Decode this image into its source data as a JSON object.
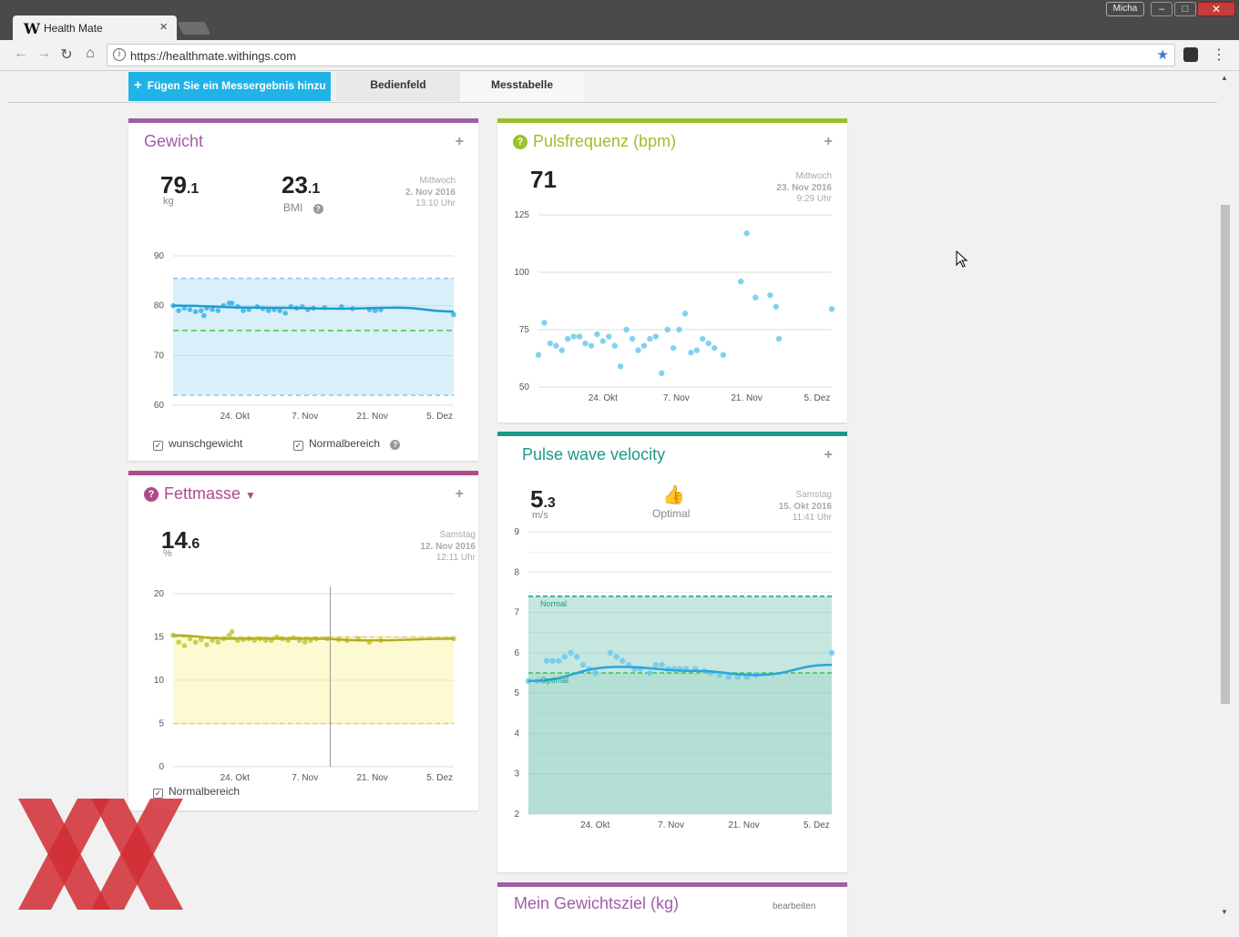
{
  "browser": {
    "tab_title": "Health Mate",
    "tab_logo": "W",
    "profile_name": "Micha",
    "url": "https://healthmate.withings.com"
  },
  "subnav": {
    "add_button": "Fügen Sie ein Messergebnis hinzu",
    "tabs": [
      "Bedienfeld",
      "Messtabelle"
    ]
  },
  "cards": {
    "weight": {
      "title": "Gewicht",
      "value_int": "79",
      "value_dec": ".1",
      "unit": "kg",
      "bmi_int": "23",
      "bmi_dec": ".1",
      "bmi_label": "BMI",
      "date_day": "Mittwoch",
      "date": "2. Nov 2016",
      "time": "13:10 Uhr",
      "checkbox_1": "wunschgewicht",
      "checkbox_2": "Normalbereich"
    },
    "fat": {
      "title": "Fettmasse",
      "value_int": "14",
      "value_dec": ".6",
      "unit": "%",
      "date_day": "Samstag",
      "date": "12. Nov 2016",
      "time": "12:11 Uhr",
      "checkbox_1": "Normalbereich"
    },
    "pulse": {
      "title": "Pulsfrequenz (bpm)",
      "value": "71",
      "date_day": "Mittwoch",
      "date": "23. Nov 2016",
      "time": "9:29 Uhr"
    },
    "pwv": {
      "title": "Pulse wave velocity",
      "value_int": "5",
      "value_dec": ".3",
      "unit": "m/s",
      "status": "Optimal",
      "date_day": "Samstag",
      "date": "15. Okt 2016",
      "time": "11:41 Uhr",
      "band_normal_label": "Normal",
      "band_optimal_label": "Optimal"
    },
    "goal": {
      "title": "Mein Gewichtsziel (kg)",
      "edit_label": "bearbeiten"
    }
  },
  "colors": {
    "weight": "#a05ea8",
    "fat": "#b04a88",
    "pulse": "#9cbf2b",
    "pwv": "#1a9b87",
    "accent": "#1fb3e8"
  },
  "chart_data": [
    {
      "id": "weight",
      "type": "scatter",
      "x_ticks": [
        "24. Okt",
        "7. Nov",
        "21. Nov",
        "5. Dez"
      ],
      "y_ticks": [
        60,
        70,
        80,
        90
      ],
      "ylim": [
        60,
        90
      ],
      "normal_range": [
        62,
        85.5
      ],
      "target": 75,
      "trend": [
        [
          0,
          80
        ],
        [
          30,
          79.6
        ],
        [
          60,
          79.4
        ],
        [
          80,
          79.6
        ],
        [
          100,
          78.8
        ]
      ],
      "points": [
        [
          0,
          80
        ],
        [
          2,
          79
        ],
        [
          4,
          79.5
        ],
        [
          6,
          79.2
        ],
        [
          8,
          78.8
        ],
        [
          10,
          79
        ],
        [
          11,
          78
        ],
        [
          12,
          79.5
        ],
        [
          14,
          79.2
        ],
        [
          16,
          79
        ],
        [
          18,
          80
        ],
        [
          20,
          80.5
        ],
        [
          21,
          80.5
        ],
        [
          23,
          79.8
        ],
        [
          25,
          79
        ],
        [
          27,
          79.2
        ],
        [
          30,
          79.8
        ],
        [
          32,
          79.4
        ],
        [
          34,
          79
        ],
        [
          36,
          79.2
        ],
        [
          38,
          79
        ],
        [
          40,
          78.5
        ],
        [
          42,
          79.8
        ],
        [
          44,
          79.5
        ],
        [
          46,
          79.8
        ],
        [
          48,
          79.2
        ],
        [
          50,
          79.5
        ],
        [
          54,
          79.6
        ],
        [
          60,
          79.8
        ],
        [
          64,
          79.4
        ],
        [
          70,
          79.2
        ],
        [
          72,
          79
        ],
        [
          74,
          79.2
        ],
        [
          100,
          78.2
        ]
      ]
    },
    {
      "id": "fat",
      "type": "scatter",
      "x_ticks": [
        "24. Okt",
        "7. Nov",
        "21. Nov",
        "5. Dez"
      ],
      "y_ticks": [
        0,
        5,
        10,
        15,
        20
      ],
      "ylim": [
        0,
        20
      ],
      "normal_range": [
        5,
        15
      ],
      "trend": [
        [
          0,
          15.2
        ],
        [
          20,
          14.8
        ],
        [
          50,
          14.8
        ],
        [
          70,
          14.6
        ],
        [
          100,
          14.8
        ]
      ],
      "points": [
        [
          0,
          15.2
        ],
        [
          2,
          14.4
        ],
        [
          4,
          14
        ],
        [
          6,
          14.8
        ],
        [
          8,
          14.4
        ],
        [
          10,
          14.7
        ],
        [
          12,
          14.1
        ],
        [
          14,
          14.6
        ],
        [
          16,
          14.4
        ],
        [
          18,
          14.8
        ],
        [
          20,
          15.2
        ],
        [
          21,
          15.6
        ],
        [
          23,
          14.6
        ],
        [
          25,
          14.7
        ],
        [
          27,
          14.8
        ],
        [
          29,
          14.6
        ],
        [
          31,
          14.8
        ],
        [
          33,
          14.6
        ],
        [
          35,
          14.6
        ],
        [
          37,
          15
        ],
        [
          39,
          14.8
        ],
        [
          41,
          14.6
        ],
        [
          43,
          14.9
        ],
        [
          45,
          14.6
        ],
        [
          47,
          14.4
        ],
        [
          49,
          14.6
        ],
        [
          51,
          14.8
        ],
        [
          55,
          14.8
        ],
        [
          59,
          14.7
        ],
        [
          62,
          14.6
        ],
        [
          66,
          14.8
        ],
        [
          70,
          14.4
        ],
        [
          74,
          14.6
        ],
        [
          100,
          14.8
        ]
      ]
    },
    {
      "id": "pulse",
      "type": "scatter",
      "x_ticks": [
        "24. Okt",
        "7. Nov",
        "21. Nov",
        "5. Dez"
      ],
      "y_ticks": [
        50,
        75,
        100,
        125
      ],
      "ylim": [
        50,
        125
      ],
      "points": [
        [
          0,
          64
        ],
        [
          2,
          78
        ],
        [
          4,
          69
        ],
        [
          6,
          68
        ],
        [
          8,
          66
        ],
        [
          10,
          71
        ],
        [
          12,
          72
        ],
        [
          14,
          72
        ],
        [
          16,
          69
        ],
        [
          18,
          68
        ],
        [
          20,
          73
        ],
        [
          22,
          70
        ],
        [
          24,
          72
        ],
        [
          26,
          68
        ],
        [
          28,
          59
        ],
        [
          30,
          75
        ],
        [
          32,
          71
        ],
        [
          34,
          66
        ],
        [
          36,
          68
        ],
        [
          38,
          71
        ],
        [
          40,
          72
        ],
        [
          42,
          56
        ],
        [
          44,
          75
        ],
        [
          46,
          67
        ],
        [
          48,
          75
        ],
        [
          50,
          82
        ],
        [
          52,
          65
        ],
        [
          54,
          66
        ],
        [
          56,
          71
        ],
        [
          58,
          69
        ],
        [
          60,
          67
        ],
        [
          63,
          64
        ],
        [
          69,
          96
        ],
        [
          71,
          117
        ],
        [
          74,
          89
        ],
        [
          79,
          90
        ],
        [
          81,
          85
        ],
        [
          82,
          71
        ],
        [
          100,
          84
        ]
      ]
    },
    {
      "id": "pwv",
      "type": "scatter",
      "x_ticks": [
        "24. Okt",
        "7. Nov",
        "21. Nov",
        "5. Dez"
      ],
      "y_ticks": [
        2,
        3,
        4,
        5,
        6,
        7,
        8,
        9
      ],
      "ylim": [
        2,
        9
      ],
      "normal_band": [
        5.5,
        7.4
      ],
      "optimal_band": [
        2,
        5.5
      ],
      "trend": [
        [
          0,
          5.3
        ],
        [
          30,
          5.65
        ],
        [
          55,
          5.55
        ],
        [
          75,
          5.45
        ],
        [
          100,
          5.7
        ]
      ],
      "points": [
        [
          0,
          5.3
        ],
        [
          3,
          5.3
        ],
        [
          6,
          5.8
        ],
        [
          8,
          5.8
        ],
        [
          10,
          5.8
        ],
        [
          12,
          5.9
        ],
        [
          14,
          6
        ],
        [
          16,
          5.9
        ],
        [
          18,
          5.7
        ],
        [
          20,
          5.6
        ],
        [
          22,
          5.5
        ],
        [
          27,
          6
        ],
        [
          29,
          5.9
        ],
        [
          31,
          5.8
        ],
        [
          33,
          5.7
        ],
        [
          35,
          5.6
        ],
        [
          37,
          5.6
        ],
        [
          40,
          5.5
        ],
        [
          42,
          5.7
        ],
        [
          44,
          5.7
        ],
        [
          46,
          5.6
        ],
        [
          48,
          5.6
        ],
        [
          50,
          5.6
        ],
        [
          52,
          5.6
        ],
        [
          55,
          5.6
        ],
        [
          58,
          5.55
        ],
        [
          60,
          5.5
        ],
        [
          63,
          5.45
        ],
        [
          66,
          5.4
        ],
        [
          69,
          5.4
        ],
        [
          72,
          5.4
        ],
        [
          75,
          5.45
        ],
        [
          100,
          6
        ]
      ]
    }
  ]
}
